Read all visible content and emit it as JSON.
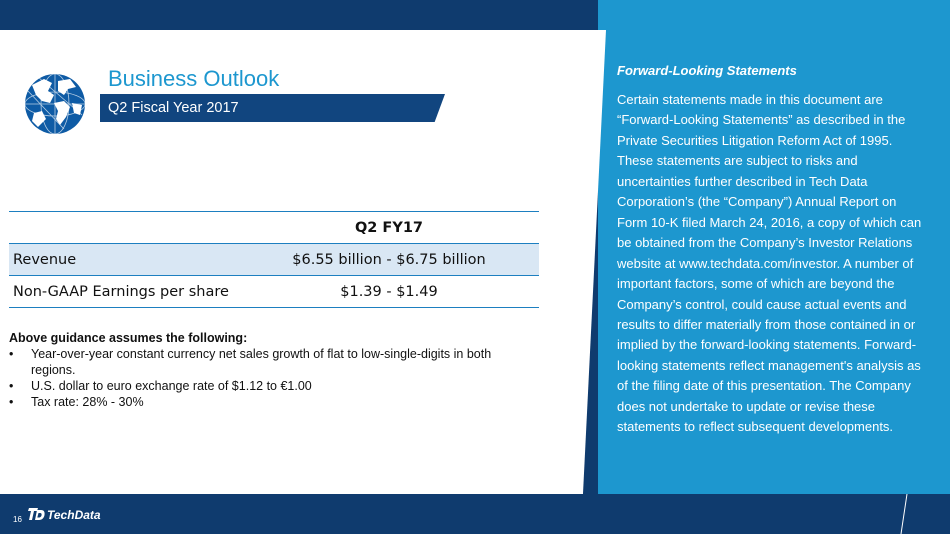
{
  "slide": {
    "title": "Business Outlook",
    "subtitle": "Q2 Fiscal Year 2017",
    "page_number": "16",
    "logo_text": "TechData"
  },
  "table": {
    "header": [
      "",
      "Q2 FY17"
    ],
    "rows": [
      {
        "label": "Revenue",
        "value": "$6.55 billion - $6.75 billion"
      },
      {
        "label": "Non-GAAP Earnings per share",
        "value": "$1.39 - $1.49"
      }
    ]
  },
  "assumptions": {
    "heading": "Above guidance assumes the following:",
    "items": [
      "Year-over-year constant currency net sales growth of flat to low-single-digits in both regions.",
      "U.S. dollar to euro exchange rate of $1.12 to €1.00",
      "Tax rate: 28% - 30%"
    ]
  },
  "forward_looking": {
    "title": "Forward-Looking Statements",
    "body": "Certain statements made in this document are “Forward-Looking Statements” as described in the Private Securities Litigation Reform Act of 1995. These statements are subject to risks and uncertainties further described in Tech Data Corporation’s (the “Company”) Annual Report on Form 10-K filed March 24, 2016, a copy of which can be obtained from the Company’s Investor Relations website at www.techdata.com/investor. A number of important factors, some of which are beyond the Company’s control, could cause actual events and results to differ materially from those contained in or implied by the forward-looking statements. Forward-looking statements reflect management's analysis as of the filing date of this presentation. The Company does not undertake to update or revise these statements to reflect subsequent developments."
  },
  "colors": {
    "navy": "#0f3b6e",
    "accent_blue": "#1d97cf",
    "table_shade": "#d9e7f4"
  }
}
